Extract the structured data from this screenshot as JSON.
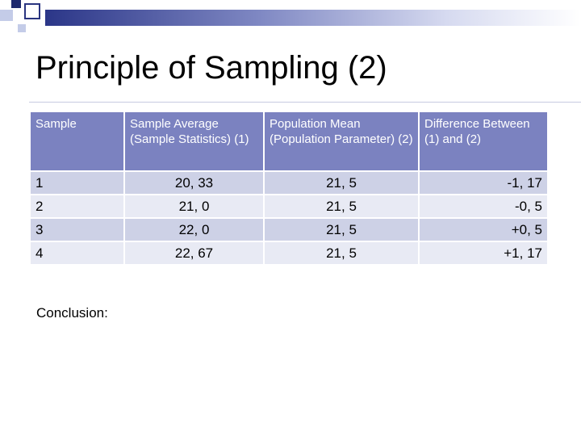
{
  "colors": {
    "header_bg": "#7b82c0",
    "row_odd": "#cdd1e6",
    "row_even": "#e8eaf4",
    "accent_dark": "#1f2a6e"
  },
  "slide": {
    "title": "Principle of Sampling (2)",
    "conclusion_label": "Conclusion:"
  },
  "table": {
    "headers": [
      "Sample",
      "Sample Average (Sample Statistics) (1)",
      "Population Mean (Population Parameter) (2)",
      "Difference Between (1) and (2)"
    ],
    "rows": [
      [
        "1",
        "20, 33",
        "21, 5",
        "-1, 17"
      ],
      [
        "2",
        "21, 0",
        "21, 5",
        "-0, 5"
      ],
      [
        "3",
        "22, 0",
        "21, 5",
        "+0, 5"
      ],
      [
        "4",
        "22, 67",
        "21, 5",
        "+1, 17"
      ]
    ]
  }
}
